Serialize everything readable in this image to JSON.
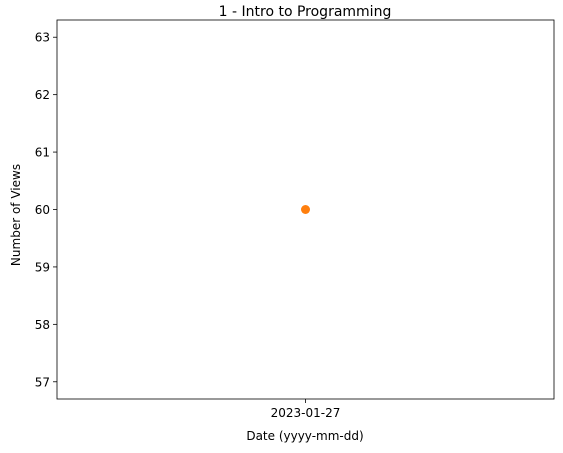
{
  "chart_data": {
    "type": "scatter",
    "title": "1 - Intro to Programming",
    "xlabel": "Date (yyyy-mm-dd)",
    "ylabel": "Number of Views",
    "x_categories": [
      "2023-01-27"
    ],
    "y_ticks": [
      57,
      58,
      59,
      60,
      61,
      62,
      63
    ],
    "ylim": [
      56.7,
      63.3
    ],
    "grid": false,
    "legend": "none",
    "series": [
      {
        "color": "#ff7f0e",
        "points": [
          {
            "x": "2023-01-27",
            "y": 60
          }
        ]
      }
    ]
  }
}
